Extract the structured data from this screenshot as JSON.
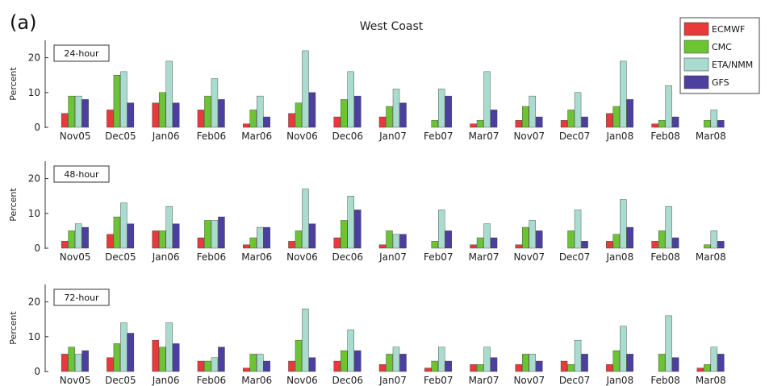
{
  "panel_letter": "(a)",
  "title": "West Coast",
  "colors": {
    "ECMWF": "#e83a3a",
    "CMC": "#6cc435",
    "ETA/NMM": "#a9dccf",
    "GFS": "#4b3f9f"
  },
  "chart_data": [
    {
      "type": "bar",
      "panel_label": "24-hour",
      "ylabel": "Percent",
      "ylim": [
        0,
        25
      ],
      "yticks": [
        0,
        10,
        20
      ],
      "categories": [
        "Nov05",
        "Dec05",
        "Jan06",
        "Feb06",
        "Mar06",
        "Nov06",
        "Dec06",
        "Jan07",
        "Feb07",
        "Mar07",
        "Nov07",
        "Dec07",
        "Jan08",
        "Feb08",
        "Mar08"
      ],
      "series": [
        {
          "name": "ECMWF",
          "values": [
            4,
            5,
            7,
            5,
            1,
            4,
            3,
            3,
            0,
            1,
            2,
            2,
            4,
            1,
            0
          ]
        },
        {
          "name": "CMC",
          "values": [
            9,
            15,
            10,
            9,
            5,
            7,
            8,
            6,
            2,
            2,
            6,
            5,
            6,
            2,
            2
          ]
        },
        {
          "name": "ETA/NMM",
          "values": [
            9,
            16,
            19,
            14,
            9,
            22,
            16,
            11,
            11,
            16,
            9,
            10,
            19,
            12,
            5
          ]
        },
        {
          "name": "GFS",
          "values": [
            8,
            7,
            7,
            8,
            3,
            10,
            9,
            7,
            9,
            5,
            3,
            3,
            8,
            3,
            2
          ]
        }
      ],
      "legend": [
        "ECMWF",
        "CMC",
        "ETA/NMM",
        "GFS"
      ],
      "legend_position": "top-right"
    },
    {
      "type": "bar",
      "panel_label": "48-hour",
      "ylabel": "Percent",
      "ylim": [
        0,
        25
      ],
      "yticks": [
        0,
        10,
        20
      ],
      "categories": [
        "Nov05",
        "Dec05",
        "Jan06",
        "Feb06",
        "Mar06",
        "Nov06",
        "Dec06",
        "Jan07",
        "Feb07",
        "Mar07",
        "Nov07",
        "Dec07",
        "Jan08",
        "Feb08",
        "Mar08"
      ],
      "series": [
        {
          "name": "ECMWF",
          "values": [
            2,
            4,
            5,
            3,
            1,
            2,
            3,
            1,
            0,
            1,
            1,
            0,
            2,
            2,
            0
          ]
        },
        {
          "name": "CMC",
          "values": [
            5,
            9,
            5,
            8,
            3,
            5,
            8,
            5,
            2,
            3,
            6,
            5,
            4,
            5,
            1
          ]
        },
        {
          "name": "ETA/NMM",
          "values": [
            7,
            13,
            12,
            8,
            6,
            17,
            15,
            4,
            11,
            7,
            8,
            11,
            14,
            12,
            5
          ]
        },
        {
          "name": "GFS",
          "values": [
            6,
            7,
            7,
            9,
            6,
            7,
            11,
            4,
            5,
            3,
            5,
            2,
            6,
            3,
            2
          ]
        }
      ]
    },
    {
      "type": "bar",
      "panel_label": "72-hour",
      "ylabel": "Percent",
      "ylim": [
        0,
        25
      ],
      "yticks": [
        0,
        10,
        20
      ],
      "categories": [
        "Nov05",
        "Dec05",
        "Jan06",
        "Feb06",
        "Mar06",
        "Nov06",
        "Dec06",
        "Jan07",
        "Feb07",
        "Mar07",
        "Nov07",
        "Dec07",
        "Jan08",
        "Feb08",
        "Mar08"
      ],
      "series": [
        {
          "name": "ECMWF",
          "values": [
            5,
            4,
            9,
            3,
            1,
            3,
            3,
            2,
            1,
            2,
            2,
            3,
            2,
            0,
            1
          ]
        },
        {
          "name": "CMC",
          "values": [
            7,
            8,
            7,
            3,
            5,
            9,
            6,
            5,
            3,
            2,
            5,
            2,
            6,
            5,
            2
          ]
        },
        {
          "name": "ETA/NMM",
          "values": [
            5,
            14,
            14,
            4,
            5,
            18,
            12,
            7,
            7,
            7,
            5,
            9,
            13,
            16,
            7
          ]
        },
        {
          "name": "GFS",
          "values": [
            6,
            11,
            8,
            7,
            3,
            4,
            6,
            5,
            3,
            4,
            3,
            5,
            5,
            4,
            5
          ]
        }
      ]
    }
  ]
}
